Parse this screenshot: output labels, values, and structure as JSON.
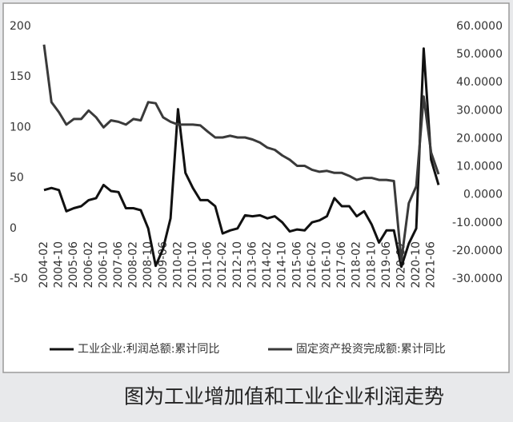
{
  "chart_data": {
    "type": "line",
    "caption": "图为工业增加值和工业企业利润走势",
    "x": [
      "2004-02",
      null,
      "2004-10",
      null,
      "2005-06",
      null,
      "2006-02",
      null,
      "2006-10",
      null,
      "2007-06",
      null,
      "2008-02",
      null,
      "2008-10",
      null,
      "2009-06",
      null,
      "2010-02",
      null,
      "2010-10",
      null,
      "2011-06",
      null,
      "2012-02",
      null,
      "2012-10",
      null,
      "2013-06",
      null,
      "2014-02",
      null,
      "2014-10",
      null,
      "2015-06",
      null,
      "2016-02",
      null,
      "2016-10",
      null,
      "2017-06",
      null,
      "2018-02",
      null,
      "2018-10",
      null,
      "2019-06",
      null,
      "2020-02",
      null,
      "2020-10",
      null,
      "2021-06",
      null
    ],
    "series": [
      {
        "name": "工业企业:利润总额:累计同比",
        "color": "#111111",
        "axis": "y",
        "values": [
          38,
          40,
          38,
          17,
          20,
          22,
          28,
          30,
          43,
          37,
          36,
          20,
          20,
          18,
          0,
          -37,
          -20,
          10,
          118,
          55,
          40,
          28,
          28,
          22,
          -5,
          -2,
          0,
          13,
          12,
          13,
          10,
          12,
          6,
          -3,
          -1,
          -2,
          6,
          8,
          12,
          30,
          22,
          22,
          12,
          17,
          4,
          -14,
          -2,
          -2,
          -38,
          -15,
          0,
          178,
          68,
          43
        ]
      },
      {
        "name": "固定资产投资完成额:累计同比",
        "color": "#3a3a3a",
        "axis": "y2",
        "values": [
          53.5,
          33,
          29.4,
          25,
          27,
          27,
          30,
          27.6,
          24,
          26.5,
          26,
          25,
          27,
          26.5,
          33,
          32.6,
          27.6,
          26,
          25,
          25,
          25,
          24.7,
          22.5,
          20.4,
          20.4,
          21,
          20.4,
          20.4,
          19.7,
          18.6,
          16.8,
          16,
          14,
          12.5,
          10.3,
          10.3,
          8.9,
          8.2,
          8.5,
          7.8,
          7.8,
          6.7,
          5.3,
          6,
          6,
          5.3,
          5.3,
          4.9,
          -23.5,
          -3,
          3,
          35,
          15,
          7.3
        ]
      }
    ],
    "ylim": [
      -50,
      200
    ],
    "yticks": [
      -50,
      0,
      50,
      100,
      150,
      200
    ],
    "y2lim": [
      -30,
      60
    ],
    "y2ticks": [
      {
        "value": -30,
        "label": "-30.0000"
      },
      {
        "value": -20,
        "label": "-20.0000"
      },
      {
        "value": -10,
        "label": "-10.0000"
      },
      {
        "value": 0,
        "label": "0.0000"
      },
      {
        "value": 10,
        "label": "10.0000"
      },
      {
        "value": 20,
        "label": "20.0000"
      },
      {
        "value": 30,
        "label": "30.0000"
      },
      {
        "value": 40,
        "label": "40.0000"
      },
      {
        "value": 50,
        "label": "50.0000"
      },
      {
        "value": 60,
        "label": "60.0000"
      }
    ],
    "grid": false,
    "legend": "bottom"
  }
}
